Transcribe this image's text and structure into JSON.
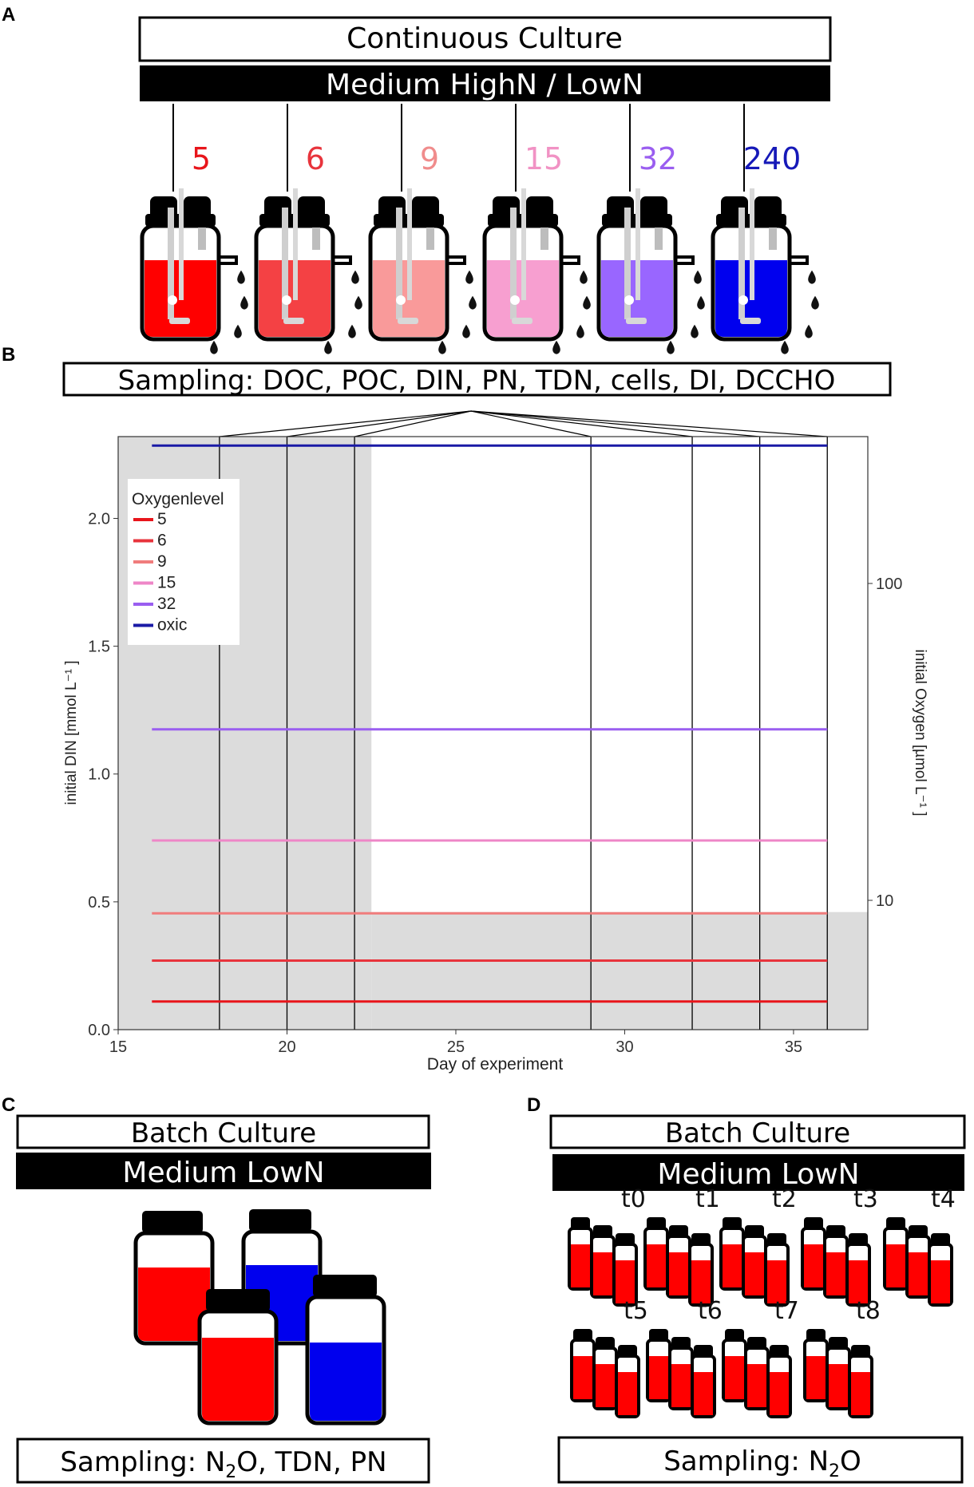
{
  "panels": {
    "A": {
      "letter": "A",
      "title": "Continuous Culture",
      "medium": "Medium HighN / LowN",
      "reactors": [
        {
          "label": "5",
          "color": "#e8151b",
          "fill": "#ff0000"
        },
        {
          "label": "6",
          "color": "#e8343c",
          "fill": "#f44144"
        },
        {
          "label": "9",
          "color": "#f08c8c",
          "fill": "#f99a9a"
        },
        {
          "label": "15",
          "color": "#f192c4",
          "fill": "#f79fd0"
        },
        {
          "label": "32",
          "color": "#9a5ef0",
          "fill": "#9966ff"
        },
        {
          "label": "240",
          "color": "#1619b8",
          "fill": "#0000ee"
        }
      ]
    },
    "B": {
      "letter": "B",
      "sampling": "Sampling: DOC, POC, DIN, PN, TDN, cells, DI, DCCHO"
    },
    "C": {
      "letter": "C",
      "title": "Batch Culture",
      "medium": "Medium LowN",
      "sampling_prefix": "Sampling: N",
      "sampling_sub": "2",
      "sampling_suffix": "O, TDN, PN"
    },
    "D": {
      "letter": "D",
      "title": "Batch Culture",
      "medium": "Medium LowN",
      "timepoints": [
        "t0",
        "t1",
        "t2",
        "t3",
        "t4",
        "t5",
        "t6",
        "t7",
        "t8"
      ],
      "sampling_prefix": "Sampling: N",
      "sampling_sub": "2",
      "sampling_suffix": "O"
    }
  },
  "chart_data": {
    "type": "line",
    "xlabel": "Day of experiment",
    "ylabel": "initial DIN [mmol L⁻¹ ]",
    "y2label": "initial Oxygen [µmol L⁻¹ ]",
    "xlim": [
      15,
      37.2
    ],
    "ylim": [
      0,
      2.32
    ],
    "x_ticks": [
      15,
      20,
      25,
      30,
      35
    ],
    "y_ticks": [
      0.0,
      0.5,
      1.0,
      1.5,
      2.0
    ],
    "y_tick_labels": [
      "0.0",
      "0.5",
      "1.0",
      "1.5",
      "2.0"
    ],
    "y2_ticks": [
      10,
      100
    ],
    "y2_tick_labels": [
      "10",
      "100"
    ],
    "sampling_days": [
      18,
      20,
      22,
      29,
      32,
      34,
      36
    ],
    "legend": {
      "title": "Oxygenlevel",
      "position": "top-left",
      "entries": [
        "5",
        "6",
        "9",
        "15",
        "32",
        "oxic"
      ]
    },
    "series": [
      {
        "name": "5",
        "color": "#e8151b",
        "x": [
          16,
          36
        ],
        "values": [
          0.11,
          0.11
        ]
      },
      {
        "name": "6",
        "color": "#e8343c",
        "x": [
          16,
          36
        ],
        "values": [
          0.27,
          0.27
        ]
      },
      {
        "name": "9",
        "color": "#f07c7c",
        "x": [
          16,
          36
        ],
        "values": [
          0.455,
          0.455
        ]
      },
      {
        "name": "15",
        "color": "#ee86c7",
        "x": [
          16,
          36
        ],
        "values": [
          0.74,
          0.74
        ]
      },
      {
        "name": "32",
        "color": "#9a5ef0",
        "x": [
          16,
          36
        ],
        "values": [
          1.175,
          1.175
        ]
      },
      {
        "name": "oxic",
        "color": "#1a1aa6",
        "x": [
          16,
          36
        ],
        "values": [
          2.285,
          2.285
        ]
      }
    ],
    "shaded_regions": [
      {
        "x": [
          15,
          22.5
        ],
        "y": [
          0,
          2.32
        ]
      },
      {
        "x": [
          22.5,
          37.2
        ],
        "y": [
          0,
          0.46
        ]
      }
    ]
  }
}
